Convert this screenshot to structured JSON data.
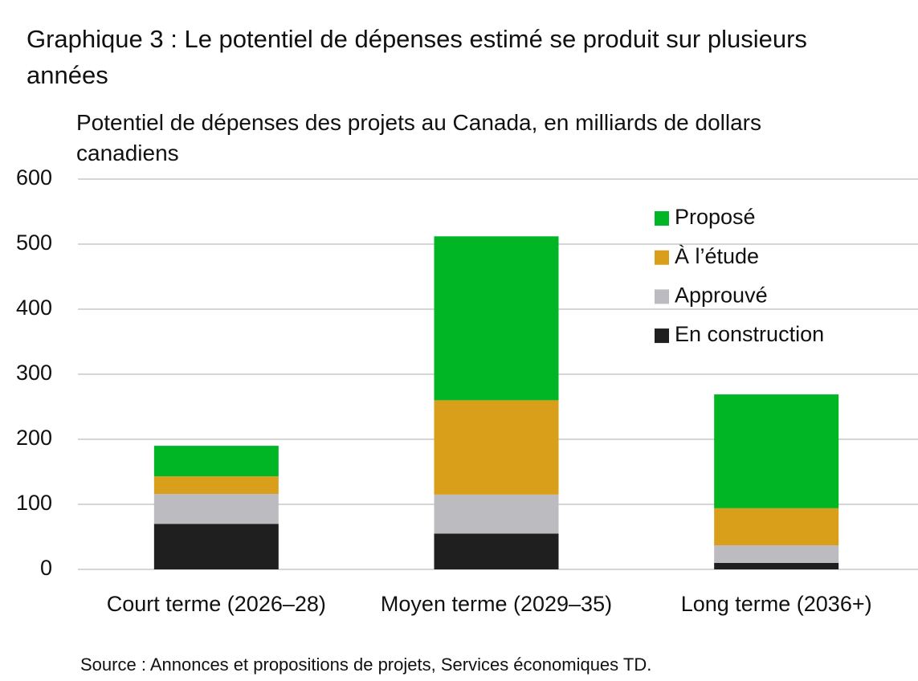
{
  "chart_data": {
    "type": "stacked_bar",
    "title": "Graphique 3 : Le potentiel de dépenses estimé se produit sur plusieurs années",
    "subtitle": "Potentiel de dépenses des projets au Canada, en milliards de dollars canadiens",
    "source": "Source : Annonces et propositions de projets, Services économiques TD.",
    "categories": [
      "Court terme (2026–28)",
      "Moyen terme (2029–35)",
      "Long terme (2036+)"
    ],
    "series": [
      {
        "name": "En construction",
        "color": "#1f1f1f",
        "values": [
          70,
          55,
          10
        ]
      },
      {
        "name": "Approuvé",
        "color": "#bcbcc0",
        "values": [
          46,
          60,
          27
        ]
      },
      {
        "name": "À l’étude",
        "color": "#d99e1a",
        "values": [
          27,
          145,
          57
        ]
      },
      {
        "name": "Proposé",
        "color": "#00b624",
        "values": [
          47,
          252,
          175
        ]
      }
    ],
    "ylim": [
      0,
      600
    ],
    "yticks": [
      0,
      100,
      200,
      300,
      400,
      500,
      600
    ],
    "grid": true,
    "legend": "top-right"
  }
}
